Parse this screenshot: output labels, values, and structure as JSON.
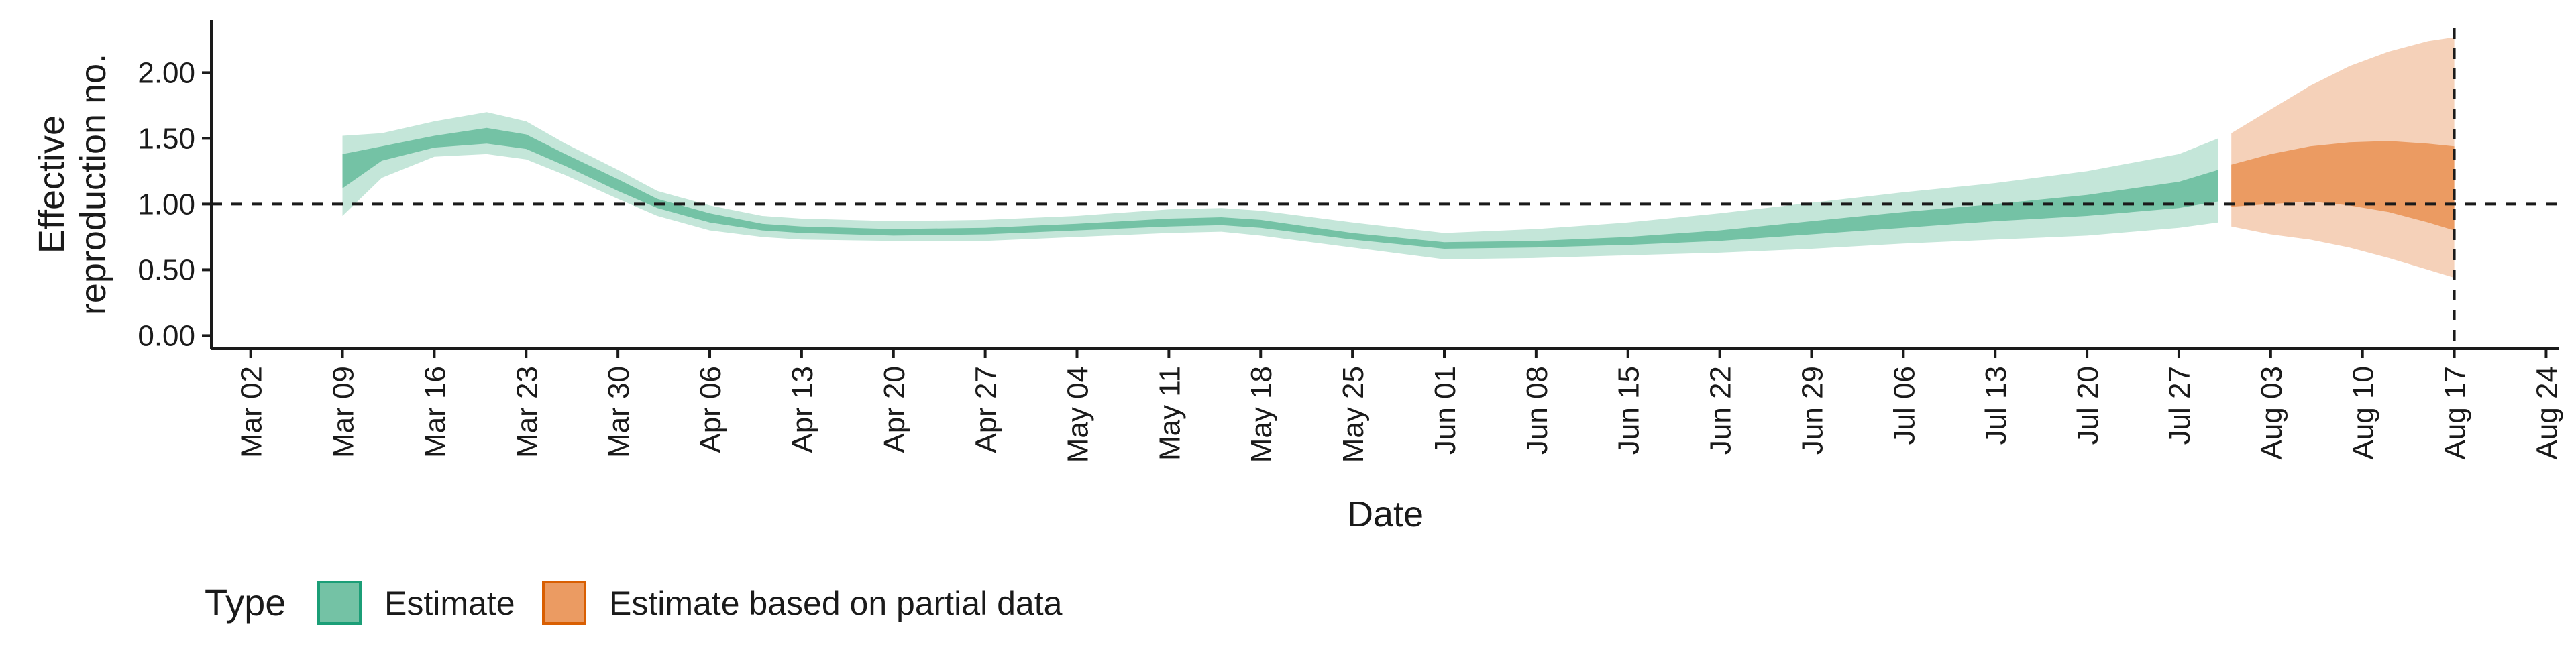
{
  "chart_data": {
    "type": "area",
    "xlabel": "Date",
    "ylabel": [
      "Effective",
      "reproduction no."
    ],
    "xlim": [
      "2020-02-28",
      "2020-08-25"
    ],
    "ylim": [
      -0.1,
      2.4
    ],
    "x_ticks": [
      "Mar 02",
      "Mar 09",
      "Mar 16",
      "Mar 23",
      "Mar 30",
      "Apr 06",
      "Apr 13",
      "Apr 20",
      "Apr 27",
      "May 04",
      "May 11",
      "May 18",
      "May 25",
      "Jun 01",
      "Jun 08",
      "Jun 15",
      "Jun 22",
      "Jun 29",
      "Jul 06",
      "Jul 13",
      "Jul 20",
      "Jul 27",
      "Aug 03",
      "Aug 10",
      "Aug 17",
      "Aug 24"
    ],
    "x_tick_dates": [
      "2020-03-02",
      "2020-03-09",
      "2020-03-16",
      "2020-03-23",
      "2020-03-30",
      "2020-04-06",
      "2020-04-13",
      "2020-04-20",
      "2020-04-27",
      "2020-05-04",
      "2020-05-11",
      "2020-05-18",
      "2020-05-25",
      "2020-06-01",
      "2020-06-08",
      "2020-06-15",
      "2020-06-22",
      "2020-06-29",
      "2020-07-06",
      "2020-07-13",
      "2020-07-20",
      "2020-07-27",
      "2020-08-03",
      "2020-08-10",
      "2020-08-17",
      "2020-08-24"
    ],
    "y_ticks": [
      0,
      0.5,
      1,
      1.5,
      2
    ],
    "y_tick_labels": [
      "0.00",
      "0.50",
      "1.00",
      "1.50",
      "2.00"
    ],
    "reference_line_y": 1.0,
    "reference_line_x": "2020-08-17",
    "grid": false,
    "legend": {
      "title": "Type",
      "position": "bottom-left",
      "entries": [
        {
          "label": "Estimate",
          "fill": "#74c2a5",
          "stroke": "#1b9e77"
        },
        {
          "label": "Estimate based on partial data",
          "fill": "#eb9b62",
          "stroke": "#d95f02"
        }
      ]
    },
    "series": [
      {
        "name": "Estimate",
        "colors": {
          "outer": "#c4e6d9",
          "inner": "#74c2a5"
        },
        "dates": [
          "2020-03-09",
          "2020-03-12",
          "2020-03-16",
          "2020-03-20",
          "2020-03-23",
          "2020-03-26",
          "2020-03-30",
          "2020-04-02",
          "2020-04-06",
          "2020-04-10",
          "2020-04-13",
          "2020-04-20",
          "2020-04-27",
          "2020-05-04",
          "2020-05-11",
          "2020-05-15",
          "2020-05-18",
          "2020-05-25",
          "2020-06-01",
          "2020-06-08",
          "2020-06-15",
          "2020-06-22",
          "2020-06-29",
          "2020-07-06",
          "2020-07-13",
          "2020-07-20",
          "2020-07-27",
          "2020-07-30"
        ],
        "median": [
          1.25,
          1.38,
          1.47,
          1.52,
          1.47,
          1.33,
          1.14,
          1.0,
          0.89,
          0.82,
          0.8,
          0.78,
          0.79,
          0.82,
          0.86,
          0.87,
          0.85,
          0.75,
          0.68,
          0.69,
          0.72,
          0.76,
          0.82,
          0.88,
          0.94,
          0.99,
          1.07,
          1.13
        ],
        "inner_lower": [
          1.12,
          1.33,
          1.43,
          1.46,
          1.42,
          1.29,
          1.1,
          0.97,
          0.86,
          0.8,
          0.78,
          0.76,
          0.77,
          0.8,
          0.83,
          0.84,
          0.82,
          0.73,
          0.66,
          0.67,
          0.69,
          0.72,
          0.77,
          0.82,
          0.87,
          0.91,
          0.97,
          1.02
        ],
        "inner_upper": [
          1.38,
          1.44,
          1.52,
          1.58,
          1.53,
          1.38,
          1.19,
          1.04,
          0.93,
          0.85,
          0.83,
          0.81,
          0.82,
          0.85,
          0.89,
          0.9,
          0.88,
          0.78,
          0.71,
          0.72,
          0.75,
          0.8,
          0.87,
          0.94,
          1.0,
          1.07,
          1.17,
          1.26
        ],
        "outer_lower": [
          0.91,
          1.2,
          1.36,
          1.38,
          1.34,
          1.22,
          1.04,
          0.91,
          0.8,
          0.75,
          0.73,
          0.72,
          0.72,
          0.75,
          0.78,
          0.79,
          0.76,
          0.67,
          0.58,
          0.59,
          0.61,
          0.63,
          0.66,
          0.7,
          0.73,
          0.76,
          0.82,
          0.86
        ],
        "outer_upper": [
          1.52,
          1.54,
          1.63,
          1.7,
          1.63,
          1.46,
          1.26,
          1.1,
          0.99,
          0.91,
          0.89,
          0.87,
          0.88,
          0.91,
          0.96,
          0.97,
          0.95,
          0.86,
          0.78,
          0.81,
          0.86,
          0.93,
          1.01,
          1.09,
          1.16,
          1.25,
          1.38,
          1.5
        ]
      },
      {
        "name": "Estimate based on partial data",
        "colors": {
          "outer": "#f5d1b9",
          "inner": "#eb9b62"
        },
        "dates": [
          "2020-07-31",
          "2020-08-03",
          "2020-08-06",
          "2020-08-09",
          "2020-08-12",
          "2020-08-15",
          "2020-08-17"
        ],
        "median": [
          1.15,
          1.2,
          1.24,
          1.23,
          1.22,
          1.16,
          1.12
        ],
        "inner_lower": [
          0.98,
          1.0,
          1.02,
          0.99,
          0.94,
          0.86,
          0.8
        ],
        "inner_upper": [
          1.3,
          1.38,
          1.44,
          1.47,
          1.48,
          1.46,
          1.44
        ],
        "outer_lower": [
          0.83,
          0.77,
          0.73,
          0.67,
          0.59,
          0.5,
          0.44
        ],
        "outer_upper": [
          1.54,
          1.72,
          1.9,
          2.05,
          2.16,
          2.24,
          2.27
        ]
      }
    ]
  }
}
